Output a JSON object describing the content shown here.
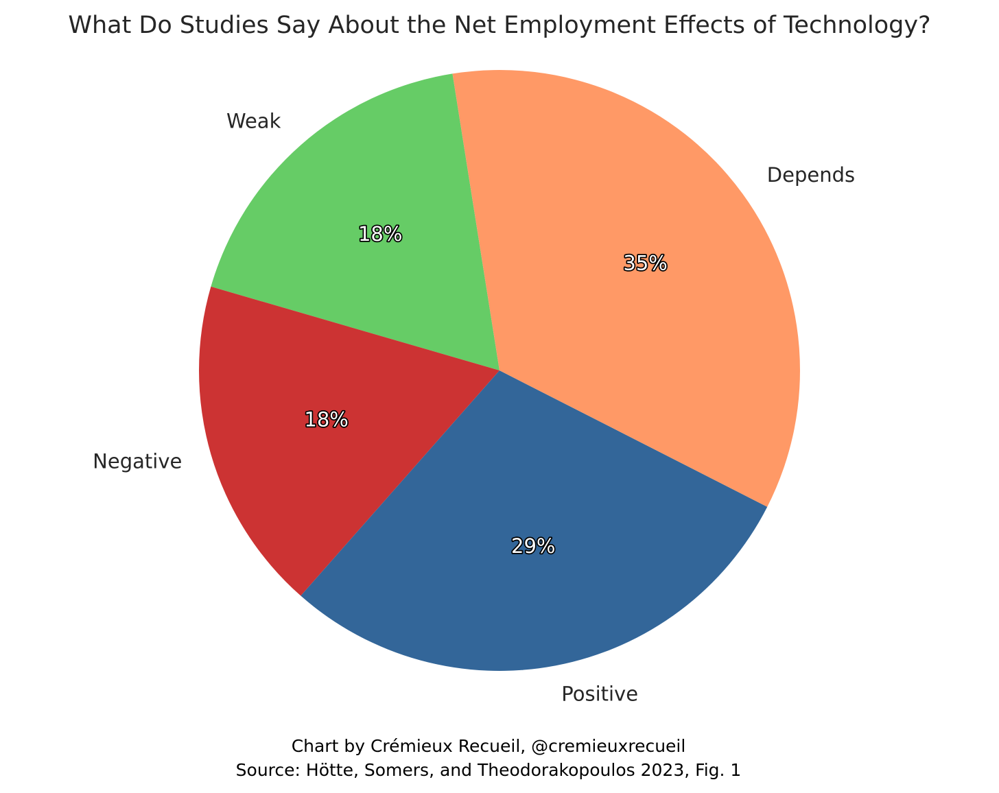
{
  "chart_data": {
    "type": "pie",
    "title": "What Do Studies Say About the Net Employment Effects of Technology?",
    "start_angle_deg": 99,
    "direction": "counterclockwise",
    "slices": [
      {
        "label": "Weak",
        "value": 18,
        "pct_label": "18%",
        "color": "#66cc66"
      },
      {
        "label": "Negative",
        "value": 18,
        "pct_label": "18%",
        "color": "#cc3333"
      },
      {
        "label": "Positive",
        "value": 29,
        "pct_label": "29%",
        "color": "#336699"
      },
      {
        "label": "Depends",
        "value": 35,
        "pct_label": "35%",
        "color": "#ff9966"
      }
    ]
  },
  "caption": {
    "line1": "Chart by Crémieux Recueil, @cremieuxrecueil",
    "line2": "Source: Hötte, Somers, and Theodorakopoulos 2023, Fig. 1"
  }
}
